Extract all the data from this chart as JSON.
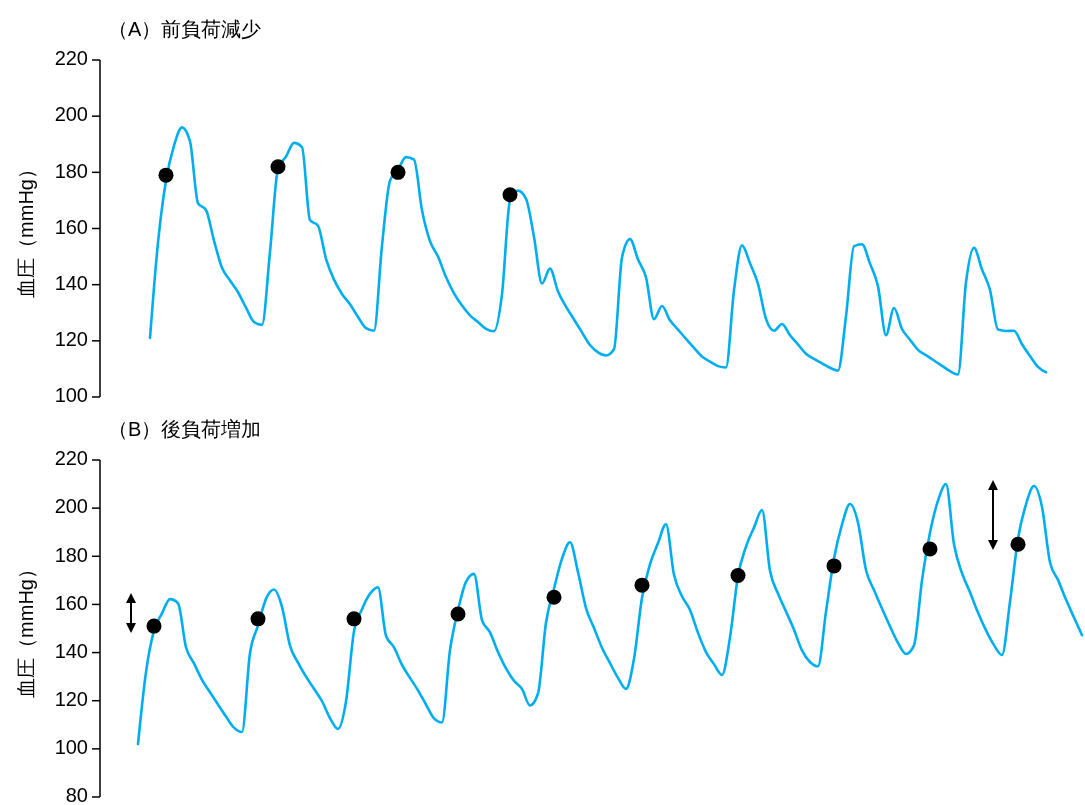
{
  "chart_data": [
    {
      "type": "line",
      "title": "（A）前負荷減少",
      "ylabel": "血圧（mmHg）",
      "ylim": [
        100,
        220
      ],
      "yticks": [
        100,
        120,
        140,
        160,
        180,
        200,
        220
      ],
      "tick_labels": "y",
      "categories": [
        null,
        null,
        null,
        null,
        null,
        null,
        null,
        null,
        null,
        null,
        null,
        null,
        null,
        null,
        null,
        null,
        null,
        null,
        null,
        null,
        null,
        null,
        null,
        null,
        null,
        null,
        null,
        null,
        null,
        null,
        null,
        null,
        null,
        null,
        null,
        null,
        null,
        null,
        null,
        null,
        null,
        null,
        null,
        null,
        null,
        null,
        null,
        null,
        null,
        null,
        null,
        null,
        null,
        null,
        null,
        null,
        null,
        null,
        null,
        null,
        null,
        null,
        null,
        null,
        null,
        null,
        null,
        null,
        null,
        null,
        null,
        null,
        null,
        null,
        null,
        null,
        null,
        null,
        null,
        null,
        null,
        null,
        null,
        null,
        null,
        null,
        null,
        null,
        null,
        null,
        null,
        null,
        null,
        null,
        null,
        null,
        null,
        null,
        null,
        null,
        null,
        null,
        null,
        null,
        null,
        null,
        null,
        null,
        null,
        null,
        null,
        null,
        null
      ],
      "series": [
        {
          "color": "#00aeef",
          "values": [
            121,
            155,
            177,
            189.5,
            196,
            191,
            169,
            166.6,
            155.7,
            146,
            141.5,
            137.3,
            131.8,
            126.7,
            125.7,
            151.7,
            181.3,
            185.6,
            190.5,
            189,
            163,
            161,
            149.2,
            141.8,
            136.7,
            133,
            128.5,
            124.5,
            123.6,
            154,
            177,
            181,
            185.4,
            184.5,
            166.5,
            155.5,
            150,
            142.7,
            136.9,
            132.6,
            129.1,
            126.7,
            124.3,
            123.4,
            136.6,
            170,
            173.5,
            170.6,
            157,
            140.4,
            145.7,
            137.6,
            132.2,
            127.6,
            123,
            118.5,
            115.9,
            114.8,
            117,
            149.7,
            156.2,
            149,
            142.6,
            127.7,
            132.4,
            127.3,
            124,
            120.7,
            117.5,
            114.4,
            112.6,
            111,
            110.5,
            138,
            154,
            147.6,
            140.3,
            127.8,
            123.6,
            126,
            122,
            118.7,
            115.4,
            113.6,
            112,
            110.4,
            109.4,
            128.7,
            153.7,
            154.4,
            147.5,
            139.4,
            122,
            131.7,
            124.2,
            120.4,
            116.8,
            114.9,
            113,
            111.1,
            109.2,
            108,
            140.8,
            153.1,
            145.4,
            138.1,
            124,
            123.5,
            123.6,
            118.8,
            114.6,
            110.7,
            108.8
          ]
        },
        {
          "type": "scatter",
          "color": "#000000",
          "values": [
            null,
            null,
            179,
            null,
            null,
            null,
            null,
            null,
            null,
            null,
            null,
            null,
            null,
            null,
            null,
            null,
            182,
            null,
            null,
            null,
            null,
            null,
            null,
            null,
            null,
            null,
            null,
            null,
            null,
            null,
            null,
            180,
            null,
            null,
            null,
            null,
            null,
            null,
            null,
            null,
            null,
            null,
            null,
            null,
            null,
            172,
            null,
            null,
            null,
            null,
            null,
            null,
            null,
            null,
            null,
            null,
            null,
            null,
            null,
            null,
            null,
            null,
            null,
            null,
            null,
            null,
            null,
            null,
            null,
            null,
            null,
            null,
            null,
            null,
            null,
            null,
            null,
            null,
            null,
            null,
            null,
            null,
            null,
            null,
            null,
            null,
            null,
            null,
            null,
            null,
            null,
            null,
            null,
            null,
            null,
            null,
            null,
            null,
            null,
            null,
            null,
            null,
            null,
            null,
            null,
            null,
            null,
            null,
            null,
            null,
            null,
            null,
            null
          ]
        }
      ]
    },
    {
      "type": "line",
      "title": "（B）後負荷増加",
      "ylabel": "血圧（mmHg）",
      "ylim": [
        80,
        220
      ],
      "yticks": [
        80,
        100,
        120,
        140,
        160,
        180,
        200,
        220
      ],
      "tick_labels": "y",
      "categories": [
        null,
        null,
        null,
        null,
        null,
        null,
        null,
        null,
        null,
        null,
        null,
        null,
        null,
        null,
        null,
        null,
        null,
        null,
        null,
        null,
        null,
        null,
        null,
        null,
        null,
        null,
        null,
        null,
        null,
        null,
        null,
        null,
        null,
        null,
        null,
        null,
        null,
        null,
        null,
        null,
        null,
        null,
        null,
        null,
        null,
        null,
        null,
        null,
        null,
        null,
        null,
        null,
        null,
        null,
        null,
        null,
        null,
        null,
        null,
        null,
        null,
        null,
        null,
        null,
        null,
        null,
        null,
        null,
        null,
        null,
        null,
        null,
        null,
        null,
        null,
        null,
        null,
        null,
        null,
        null,
        null,
        null,
        null,
        null,
        null,
        null,
        null,
        null,
        null,
        null,
        null,
        null,
        null,
        null,
        null,
        null,
        null,
        null,
        null,
        null,
        null,
        null,
        null,
        null,
        null,
        null,
        null,
        null,
        null,
        null,
        null,
        null,
        null,
        null,
        null,
        null,
        null,
        null,
        null
      ],
      "series": [
        {
          "color": "#00aeef",
          "values": [
            102,
            131.9,
            149.1,
            156.3,
            162.2,
            160.5,
            142.2,
            135.5,
            128.7,
            123.5,
            118.4,
            113.4,
            108.8,
            107,
            139.8,
            151.2,
            162.3,
            166.2,
            159,
            142.9,
            135.8,
            130,
            125,
            119.8,
            112.8,
            108.3,
            119.7,
            148.8,
            158,
            164.4,
            167.1,
            147,
            142.2,
            134.9,
            129.5,
            124.3,
            118.4,
            112.7,
            111,
            141,
            157.6,
            169.4,
            172.7,
            153.5,
            148.4,
            140.2,
            133.4,
            128.3,
            124.9,
            118,
            123,
            152.4,
            166.5,
            179,
            185.8,
            173.4,
            158.5,
            150.2,
            142,
            135.6,
            129.5,
            124.9,
            137.4,
            162.8,
            176.7,
            185.5,
            193.3,
            172.3,
            163.4,
            157.7,
            148.2,
            140.2,
            135.2,
            130.7,
            146.3,
            171.8,
            184,
            191.9,
            199.2,
            174,
            164.5,
            157.1,
            149.5,
            140.9,
            136.1,
            134.3,
            157,
            179.1,
            193.2,
            201.7,
            194,
            174.3,
            166,
            158.3,
            150.9,
            144,
            139.4,
            143,
            170,
            189.8,
            203.1,
            210,
            185,
            173,
            165.1,
            156.6,
            149.2,
            143.1,
            139,
            161.1,
            187.3,
            201.6,
            209.2,
            200.5,
            177.5,
            170.2,
            162,
            154.6,
            147.2
          ]
        },
        {
          "type": "scatter",
          "color": "#000000",
          "values": [
            null,
            null,
            151,
            null,
            null,
            null,
            null,
            null,
            null,
            null,
            null,
            null,
            null,
            null,
            null,
            154,
            null,
            null,
            null,
            null,
            null,
            null,
            null,
            null,
            null,
            null,
            null,
            154,
            null,
            null,
            null,
            null,
            null,
            null,
            null,
            null,
            null,
            null,
            null,
            null,
            156,
            null,
            null,
            null,
            null,
            null,
            null,
            null,
            null,
            null,
            null,
            null,
            163,
            null,
            null,
            null,
            null,
            null,
            null,
            null,
            null,
            null,
            null,
            168,
            null,
            null,
            null,
            null,
            null,
            null,
            null,
            null,
            null,
            null,
            null,
            172,
            null,
            null,
            null,
            null,
            null,
            null,
            null,
            null,
            null,
            null,
            null,
            176,
            null,
            null,
            null,
            null,
            null,
            null,
            null,
            null,
            null,
            null,
            null,
            183,
            null,
            null,
            null,
            null,
            null,
            null,
            null,
            null,
            null,
            null,
            185,
            null,
            null,
            null,
            null,
            null,
            null,
            null,
            null
          ]
        }
      ]
    }
  ]
}
